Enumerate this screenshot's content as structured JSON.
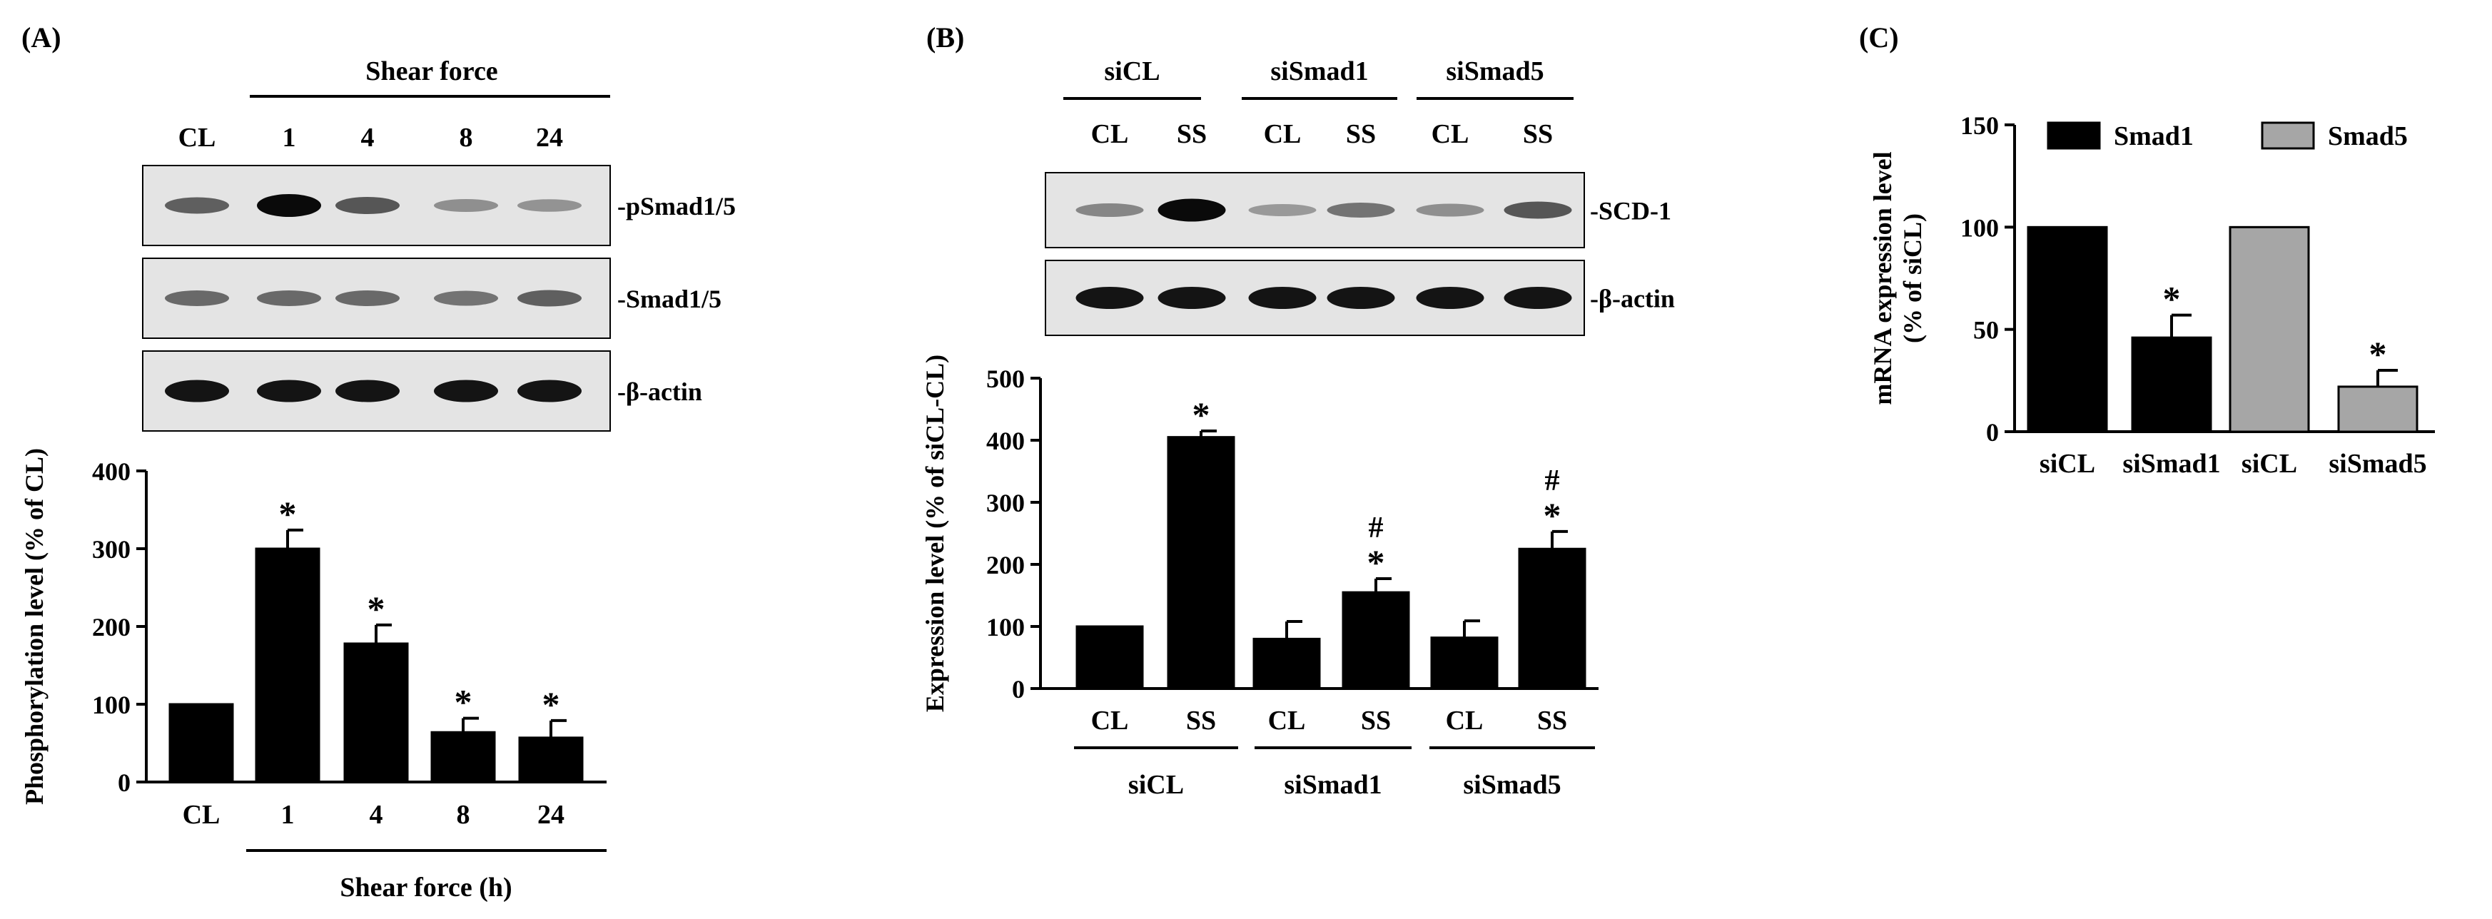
{
  "panels": {
    "A": {
      "label": "(A)",
      "blot": {
        "group_label": "Shear force",
        "lanes": [
          "CL",
          "1",
          "4",
          "8",
          "24"
        ],
        "rows": [
          {
            "name": "-pSmad1/5",
            "intensity": [
              0.55,
              1.0,
              0.6,
              0.3,
              0.28
            ]
          },
          {
            "name": "-Smad1/5",
            "intensity": [
              0.5,
              0.5,
              0.5,
              0.45,
              0.55
            ]
          },
          {
            "name": "-β-actin",
            "intensity": [
              0.95,
              0.95,
              0.95,
              0.95,
              0.95
            ]
          }
        ]
      }
    },
    "B": {
      "label": "(B)",
      "blot": {
        "groups": [
          "siCL",
          "siSmad1",
          "siSmad5"
        ],
        "lanes": [
          "CL",
          "SS",
          "CL",
          "SS",
          "CL",
          "SS"
        ],
        "rows": [
          {
            "name": "-SCD-1",
            "intensity": [
              0.35,
              1.0,
              0.25,
              0.45,
              0.3,
              0.6
            ]
          },
          {
            "name": "-β-actin",
            "intensity": [
              0.95,
              0.95,
              0.95,
              0.95,
              0.95,
              0.95
            ]
          }
        ]
      }
    },
    "C": {
      "label": "(C)"
    }
  },
  "chart_data": [
    {
      "panel": "A",
      "type": "bar",
      "categories": [
        "CL",
        "1",
        "4",
        "8",
        "24"
      ],
      "values": [
        100,
        300,
        178,
        64,
        57
      ],
      "errors": [
        0,
        24,
        24,
        18,
        22
      ],
      "significance": [
        "",
        "*",
        "*",
        "*",
        "*"
      ],
      "xlabel": "Shear force (h)",
      "ylabel": "Phosphorylation level  (% of CL)",
      "ylim": [
        0,
        400
      ],
      "yticks": [
        0,
        100,
        200,
        300,
        400
      ],
      "color": "#000000"
    },
    {
      "panel": "B",
      "type": "bar",
      "categories": [
        "CL",
        "SS",
        "CL",
        "SS",
        "CL",
        "SS"
      ],
      "groups": [
        "siCL",
        "siSmad1",
        "siSmad5"
      ],
      "values": [
        100,
        405,
        80,
        155,
        82,
        225
      ],
      "errors": [
        0,
        10,
        28,
        22,
        27,
        28
      ],
      "significance": [
        "",
        "*",
        "",
        "*",
        "",
        "*"
      ],
      "hash": [
        "",
        "",
        "",
        "#",
        "",
        "#"
      ],
      "ylabel": "Expression level (% of siCL-CL)",
      "ylim": [
        0,
        500
      ],
      "yticks": [
        0,
        100,
        200,
        300,
        400,
        500
      ],
      "color": "#000000"
    },
    {
      "panel": "C",
      "type": "bar",
      "categories": [
        "siCL",
        "siSmad1",
        "siCL",
        "siSmad5"
      ],
      "values": [
        100,
        46,
        100,
        22
      ],
      "errors": [
        0,
        11,
        0,
        8
      ],
      "significance": [
        "",
        "*",
        "",
        "*"
      ],
      "series_of_bar": [
        "Smad1",
        "Smad1",
        "Smad5",
        "Smad5"
      ],
      "legend": [
        {
          "name": "Smad1",
          "color": "#000000"
        },
        {
          "name": "Smad5",
          "color": "#a6a6a6"
        }
      ],
      "ylabel": "mRNA expression level\n(% of siCL)",
      "ylim": [
        0,
        150
      ],
      "yticks": [
        0,
        50,
        100,
        150
      ],
      "legend_position": "top"
    }
  ]
}
